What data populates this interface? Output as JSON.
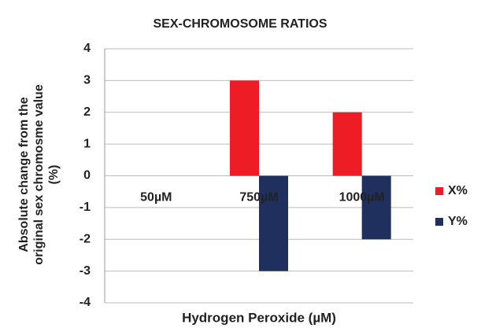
{
  "chart_data": {
    "type": "bar",
    "title": "SEX-CHROMOSOME RATIOS",
    "xlabel": "Hydrogen Peroxide (µM)",
    "ylabel": [
      "Absolute change from the",
      "original sex chromosme value",
      "(%)"
    ],
    "categories": [
      "50µM",
      "750µM",
      "1000µM"
    ],
    "series": [
      {
        "name": "X%",
        "color": "#ee1c25",
        "values": [
          0,
          3,
          2
        ]
      },
      {
        "name": "Y%",
        "color": "#1f2f5e",
        "values": [
          0,
          -3,
          -2
        ]
      }
    ],
    "ylim": [
      -4,
      4
    ],
    "yticks": [
      -4,
      -3,
      -2,
      -1,
      0,
      1,
      2,
      3,
      4
    ],
    "grid": true,
    "legend": "right"
  }
}
